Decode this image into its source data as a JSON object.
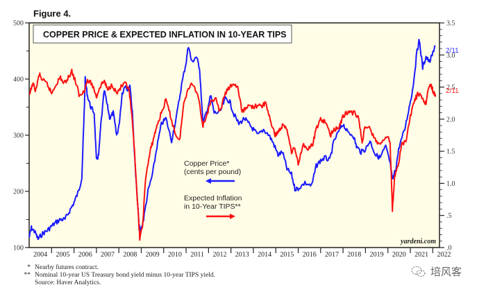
{
  "figure_label": "Figure 4.",
  "chart_data": {
    "type": "line",
    "title": "COPPER PRICE & EXPECTED INFLATION IN 10-YEAR TIPS",
    "x_tick_labels": [
      "2004",
      "2005",
      "2006",
      "2007",
      "2008",
      "2009",
      "2010",
      "2011",
      "2012",
      "2013",
      "2014",
      "2015",
      "2016",
      "2017",
      "2018",
      "2019",
      "2020",
      "2021",
      "2022"
    ],
    "xlim": [
      2004.0,
      2022.3
    ],
    "left_axis": {
      "label": "Copper Price (cents per pound)",
      "ylim": [
        100,
        500
      ],
      "ticks": [
        "100",
        "200",
        "300",
        "400",
        "500"
      ]
    },
    "right_axis": {
      "label": "Expected Inflation (%)",
      "ylim": [
        0,
        3.5
      ],
      "ticks": [
        ".0",
        ".5",
        "1.0",
        "1.5",
        "2.0",
        "2.5",
        "3.0",
        "3.5"
      ]
    },
    "grid": false,
    "series": [
      {
        "name": "Copper Price* (cents per pound)",
        "axis": "left",
        "color": "#1a1aff",
        "end_label": "2/11",
        "points": [
          [
            2004.0,
            118
          ],
          [
            2004.1,
            135
          ],
          [
            2004.25,
            128
          ],
          [
            2004.4,
            115
          ],
          [
            2004.6,
            125
          ],
          [
            2004.8,
            130
          ],
          [
            2005.0,
            138
          ],
          [
            2005.2,
            145
          ],
          [
            2005.4,
            150
          ],
          [
            2005.6,
            150
          ],
          [
            2005.8,
            165
          ],
          [
            2006.0,
            180
          ],
          [
            2006.2,
            200
          ],
          [
            2006.35,
            225
          ],
          [
            2006.45,
            335
          ],
          [
            2006.5,
            400
          ],
          [
            2006.6,
            370
          ],
          [
            2006.75,
            350
          ],
          [
            2006.9,
            340
          ],
          [
            2007.0,
            255
          ],
          [
            2007.1,
            265
          ],
          [
            2007.2,
            320
          ],
          [
            2007.35,
            380
          ],
          [
            2007.5,
            350
          ],
          [
            2007.6,
            330
          ],
          [
            2007.75,
            340
          ],
          [
            2007.9,
            300
          ],
          [
            2008.0,
            315
          ],
          [
            2008.15,
            375
          ],
          [
            2008.3,
            390
          ],
          [
            2008.4,
            380
          ],
          [
            2008.5,
            390
          ],
          [
            2008.6,
            340
          ],
          [
            2008.75,
            230
          ],
          [
            2008.9,
            140
          ],
          [
            2008.97,
            128
          ],
          [
            2009.1,
            150
          ],
          [
            2009.3,
            200
          ],
          [
            2009.5,
            230
          ],
          [
            2009.7,
            280
          ],
          [
            2009.9,
            320
          ],
          [
            2010.1,
            330
          ],
          [
            2010.35,
            290
          ],
          [
            2010.6,
            340
          ],
          [
            2010.8,
            390
          ],
          [
            2011.0,
            430
          ],
          [
            2011.1,
            460
          ],
          [
            2011.25,
            430
          ],
          [
            2011.45,
            440
          ],
          [
            2011.6,
            420
          ],
          [
            2011.75,
            320
          ],
          [
            2011.9,
            340
          ],
          [
            2012.1,
            370
          ],
          [
            2012.25,
            340
          ],
          [
            2012.5,
            340
          ],
          [
            2012.75,
            365
          ],
          [
            2012.95,
            360
          ],
          [
            2013.1,
            340
          ],
          [
            2013.35,
            320
          ],
          [
            2013.6,
            330
          ],
          [
            2013.8,
            320
          ],
          [
            2014.0,
            310
          ],
          [
            2014.2,
            300
          ],
          [
            2014.45,
            310
          ],
          [
            2014.7,
            300
          ],
          [
            2014.9,
            285
          ],
          [
            2015.1,
            265
          ],
          [
            2015.3,
            270
          ],
          [
            2015.5,
            240
          ],
          [
            2015.7,
            230
          ],
          [
            2015.85,
            205
          ],
          [
            2016.0,
            205
          ],
          [
            2016.3,
            215
          ],
          [
            2016.6,
            210
          ],
          [
            2016.8,
            245
          ],
          [
            2017.0,
            255
          ],
          [
            2017.2,
            260
          ],
          [
            2017.4,
            255
          ],
          [
            2017.6,
            290
          ],
          [
            2017.85,
            310
          ],
          [
            2018.0,
            320
          ],
          [
            2018.2,
            305
          ],
          [
            2018.45,
            300
          ],
          [
            2018.6,
            280
          ],
          [
            2018.8,
            270
          ],
          [
            2019.0,
            275
          ],
          [
            2019.2,
            290
          ],
          [
            2019.45,
            265
          ],
          [
            2019.65,
            260
          ],
          [
            2019.9,
            280
          ],
          [
            2020.1,
            250
          ],
          [
            2020.2,
            220
          ],
          [
            2020.35,
            240
          ],
          [
            2020.5,
            280
          ],
          [
            2020.75,
            310
          ],
          [
            2020.95,
            350
          ],
          [
            2021.1,
            380
          ],
          [
            2021.3,
            450
          ],
          [
            2021.4,
            470
          ],
          [
            2021.55,
            420
          ],
          [
            2021.7,
            440
          ],
          [
            2021.85,
            430
          ],
          [
            2022.0,
            445
          ],
          [
            2022.1,
            460
          ]
        ]
      },
      {
        "name": "Expected Inflation in 10-Year TIPS**",
        "axis": "right",
        "color": "#ff1010",
        "end_label": "2/11",
        "points": [
          [
            2004.0,
            2.35
          ],
          [
            2004.15,
            2.55
          ],
          [
            2004.3,
            2.45
          ],
          [
            2004.45,
            2.7
          ],
          [
            2004.6,
            2.6
          ],
          [
            2004.8,
            2.55
          ],
          [
            2005.0,
            2.4
          ],
          [
            2005.2,
            2.55
          ],
          [
            2005.4,
            2.65
          ],
          [
            2005.55,
            2.55
          ],
          [
            2005.75,
            2.65
          ],
          [
            2005.9,
            2.75
          ],
          [
            2006.1,
            2.55
          ],
          [
            2006.25,
            2.35
          ],
          [
            2006.45,
            2.45
          ],
          [
            2006.6,
            2.6
          ],
          [
            2006.8,
            2.55
          ],
          [
            2007.0,
            2.35
          ],
          [
            2007.15,
            2.5
          ],
          [
            2007.35,
            2.6
          ],
          [
            2007.5,
            2.45
          ],
          [
            2007.7,
            2.55
          ],
          [
            2007.9,
            2.4
          ],
          [
            2008.1,
            2.5
          ],
          [
            2008.3,
            2.55
          ],
          [
            2008.45,
            2.45
          ],
          [
            2008.55,
            2.15
          ],
          [
            2008.7,
            1.5
          ],
          [
            2008.85,
            0.6
          ],
          [
            2008.93,
            0.15
          ],
          [
            2009.05,
            0.3
          ],
          [
            2009.2,
            1.1
          ],
          [
            2009.4,
            1.5
          ],
          [
            2009.55,
            1.7
          ],
          [
            2009.7,
            1.9
          ],
          [
            2009.9,
            2.1
          ],
          [
            2010.1,
            2.3
          ],
          [
            2010.3,
            2.05
          ],
          [
            2010.5,
            1.8
          ],
          [
            2010.7,
            1.65
          ],
          [
            2010.9,
            2.25
          ],
          [
            2011.1,
            2.5
          ],
          [
            2011.3,
            2.55
          ],
          [
            2011.55,
            2.35
          ],
          [
            2011.75,
            1.9
          ],
          [
            2011.95,
            2.1
          ],
          [
            2012.1,
            2.25
          ],
          [
            2012.3,
            2.35
          ],
          [
            2012.5,
            2.1
          ],
          [
            2012.75,
            2.4
          ],
          [
            2012.95,
            2.5
          ],
          [
            2013.1,
            2.55
          ],
          [
            2013.3,
            2.5
          ],
          [
            2013.5,
            2.1
          ],
          [
            2013.7,
            2.2
          ],
          [
            2013.9,
            2.2
          ],
          [
            2014.1,
            2.2
          ],
          [
            2014.35,
            2.2
          ],
          [
            2014.55,
            2.25
          ],
          [
            2014.75,
            2.0
          ],
          [
            2014.95,
            1.75
          ],
          [
            2015.1,
            1.8
          ],
          [
            2015.3,
            1.9
          ],
          [
            2015.5,
            1.85
          ],
          [
            2015.7,
            1.5
          ],
          [
            2015.85,
            1.55
          ],
          [
            2016.0,
            1.3
          ],
          [
            2016.2,
            1.6
          ],
          [
            2016.45,
            1.55
          ],
          [
            2016.65,
            1.6
          ],
          [
            2016.8,
            1.85
          ],
          [
            2017.0,
            2.0
          ],
          [
            2017.2,
            1.95
          ],
          [
            2017.45,
            1.75
          ],
          [
            2017.6,
            1.85
          ],
          [
            2017.8,
            1.85
          ],
          [
            2017.95,
            2.0
          ],
          [
            2018.1,
            2.1
          ],
          [
            2018.3,
            2.1
          ],
          [
            2018.55,
            2.1
          ],
          [
            2018.7,
            2.0
          ],
          [
            2018.85,
            1.65
          ],
          [
            2019.0,
            1.9
          ],
          [
            2019.2,
            1.85
          ],
          [
            2019.4,
            1.7
          ],
          [
            2019.6,
            1.6
          ],
          [
            2019.8,
            1.65
          ],
          [
            2020.0,
            1.75
          ],
          [
            2020.1,
            1.6
          ],
          [
            2020.2,
            0.6
          ],
          [
            2020.3,
            1.1
          ],
          [
            2020.45,
            1.25
          ],
          [
            2020.6,
            1.6
          ],
          [
            2020.8,
            1.65
          ],
          [
            2021.0,
            2.05
          ],
          [
            2021.2,
            2.3
          ],
          [
            2021.35,
            2.4
          ],
          [
            2021.55,
            2.3
          ],
          [
            2021.7,
            2.25
          ],
          [
            2021.85,
            2.55
          ],
          [
            2021.95,
            2.5
          ],
          [
            2022.05,
            2.4
          ],
          [
            2022.12,
            2.35
          ]
        ]
      }
    ],
    "legend": [
      {
        "text_line1": "Copper Price*",
        "text_line2": "(cents per pound)",
        "arrow": "left",
        "color": "#1a1aff"
      },
      {
        "text_line1": "Expected Inflation",
        "text_line2": "in 10-Year TIPS**",
        "arrow": "right",
        "color": "#ff1010"
      }
    ],
    "legend_placement": "center",
    "credit": "yardeni.com"
  },
  "notes": [
    {
      "marker": "*",
      "text": "Nearby futures contract."
    },
    {
      "marker": "**",
      "text": "Nominal 10-year US Treasury bond yield minus 10-year TIPS yield."
    },
    {
      "marker": "",
      "text": "Source: Haver Analytics."
    }
  ],
  "watermark": "培风客",
  "colors": {
    "plot_bg": "#fffde6",
    "copper": "#1a1aff",
    "inflation": "#ff1010"
  }
}
